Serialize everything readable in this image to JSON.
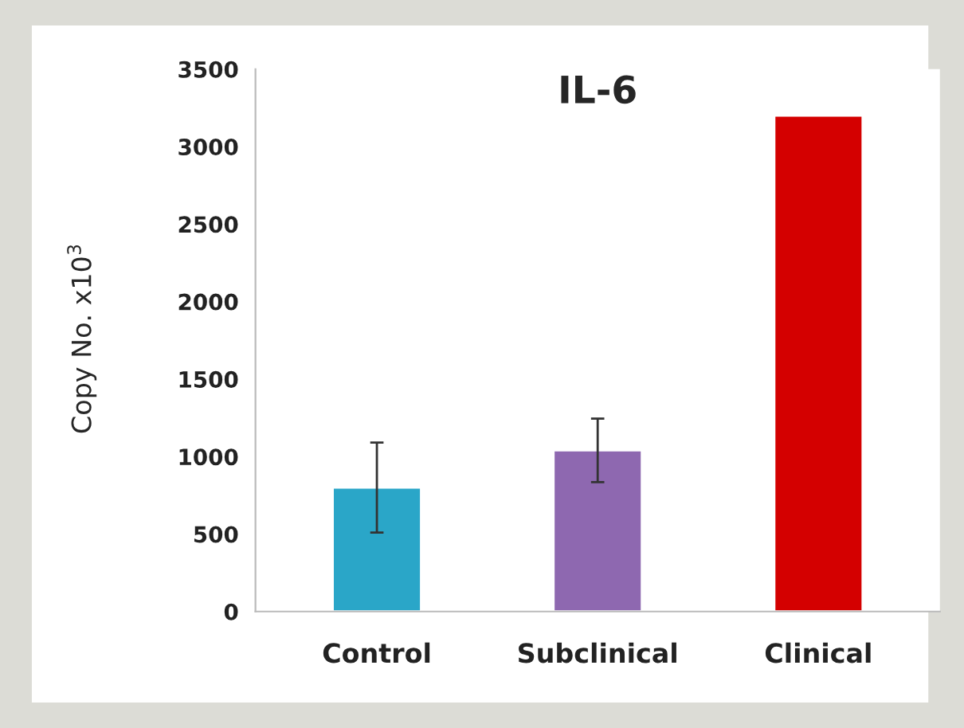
{
  "chart_data": {
    "type": "bar",
    "title": "IL-6",
    "ylabel": "Copy No. x10$^{3}$",
    "categories": [
      "Control",
      "Subclinical",
      "Clinical"
    ],
    "values": [
      800,
      1040,
      3200
    ],
    "errors": [
      290,
      205,
      null
    ],
    "colors": [
      "#2aa6c8",
      "#8e68b0",
      "#d40000"
    ],
    "ylim": [
      0,
      3500
    ],
    "yticks": [
      0,
      500,
      1000,
      1500,
      2000,
      2500,
      3000,
      3500
    ],
    "grid": false
  }
}
